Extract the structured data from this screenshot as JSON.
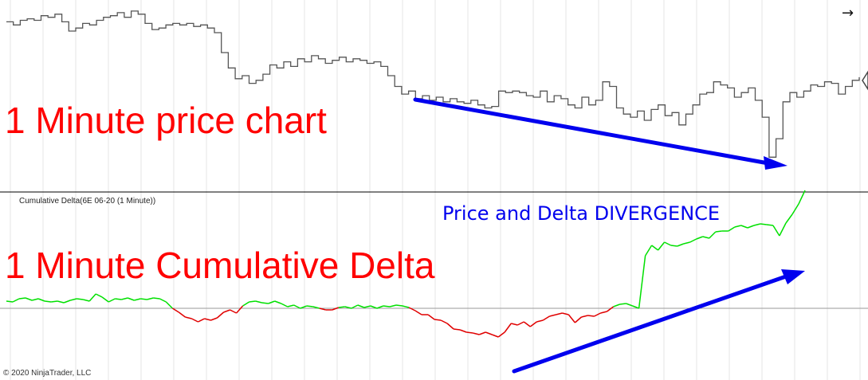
{
  "labels": {
    "price_chart": "1 Minute price chart",
    "delta_chart": "1 Minute Cumulative Delta",
    "divergence": "Price and Delta DIVERGENCE",
    "panel_title": "Cumulative Delta(6E 06-20 (1 Minute))",
    "copyright": "© 2020 NinjaTrader, LLC",
    "nav_arrow": "→"
  },
  "colors": {
    "price_line": "#555555",
    "delta_positive": "#00e000",
    "delta_negative": "#e00000",
    "annotation_red": "#ff0000",
    "annotation_blue": "#0000ee",
    "gridline": "#e6e6e6",
    "separator": "#000000",
    "zero_line": "#999999"
  },
  "icons": {
    "nav_arrow": "right-arrow-icon",
    "partial_marker": "diamond-icon"
  },
  "chart_data": [
    {
      "type": "line",
      "title": "",
      "series": [
        {
          "values": [
            0.92,
            0.9,
            0.93,
            0.94,
            0.93,
            0.96,
            0.95,
            0.97,
            0.92,
            0.86,
            0.88,
            0.91,
            0.9,
            0.93,
            0.95,
            0.96,
            0.98,
            0.95,
            0.99,
            0.97,
            0.91,
            0.87,
            0.88,
            0.9,
            0.91,
            0.9,
            0.91,
            0.89,
            0.9,
            0.88,
            0.85,
            0.72,
            0.62,
            0.55,
            0.57,
            0.52,
            0.54,
            0.58,
            0.64,
            0.62,
            0.66,
            0.63,
            0.68,
            0.66,
            0.7,
            0.68,
            0.65,
            0.67,
            0.69,
            0.66,
            0.68,
            0.67,
            0.65,
            0.66,
            0.63,
            0.57,
            0.5,
            0.45,
            0.47,
            0.42,
            0.44,
            0.41,
            0.43,
            0.4,
            0.42,
            0.4,
            0.39,
            0.41,
            0.38,
            0.36,
            0.37,
            0.47,
            0.46,
            0.47,
            0.46,
            0.44,
            0.43,
            0.47,
            0.4,
            0.44,
            0.42,
            0.38,
            0.36,
            0.43,
            0.38,
            0.41,
            0.53,
            0.5,
            0.36,
            0.32,
            0.3,
            0.34,
            0.28,
            0.35,
            0.38,
            0.31,
            0.33,
            0.25,
            0.32,
            0.38,
            0.45,
            0.46,
            0.53,
            0.51,
            0.49,
            0.43,
            0.46,
            0.49,
            0.41,
            0.3,
            0.04,
            0.16,
            0.4,
            0.46,
            0.43,
            0.47,
            0.51,
            0.5,
            0.53,
            0.52,
            0.45,
            0.5,
            0.54,
            0.56
          ]
        }
      ]
    },
    {
      "type": "line",
      "title": "Cumulative Delta(6E 06-20 (1 Minute))",
      "zero_line": true,
      "legend": "none",
      "series": [
        {
          "values": [
            0.09,
            0.08,
            0.12,
            0.13,
            0.1,
            0.12,
            0.09,
            0.08,
            0.09,
            0.07,
            0.1,
            0.12,
            0.11,
            0.09,
            0.18,
            0.14,
            0.08,
            0.12,
            0.11,
            0.13,
            0.1,
            0.12,
            0.11,
            0.13,
            0.12,
            0.08,
            0.0,
            -0.05,
            -0.11,
            -0.13,
            -0.17,
            -0.13,
            -0.15,
            -0.12,
            -0.05,
            -0.02,
            -0.06,
            0.03,
            0.08,
            0.09,
            0.07,
            0.06,
            0.09,
            0.06,
            0.02,
            0.04,
            0.0,
            0.03,
            0.02,
            0.0,
            -0.02,
            -0.02,
            0.01,
            0.02,
            0.0,
            0.04,
            0.01,
            0.03,
            0.0,
            0.03,
            0.02,
            0.04,
            0.03,
            0.01,
            -0.03,
            -0.08,
            -0.08,
            -0.14,
            -0.15,
            -0.19,
            -0.26,
            -0.27,
            -0.3,
            -0.31,
            -0.33,
            -0.3,
            -0.33,
            -0.36,
            -0.3,
            -0.19,
            -0.21,
            -0.17,
            -0.23,
            -0.17,
            -0.15,
            -0.1,
            -0.08,
            -0.06,
            -0.08,
            -0.18,
            -0.11,
            -0.09,
            -0.1,
            -0.06,
            -0.04,
            0.02,
            0.05,
            0.06,
            0.03,
            0.0,
            0.66,
            0.79,
            0.73,
            0.83,
            0.79,
            0.78,
            0.81,
            0.83,
            0.87,
            0.9,
            0.88,
            0.96,
            0.97,
            0.97,
            1.02,
            1.04,
            1.01,
            1.04,
            1.06,
            1.05,
            1.04,
            0.91,
            1.07,
            1.18,
            1.31,
            1.48
          ]
        }
      ]
    }
  ]
}
